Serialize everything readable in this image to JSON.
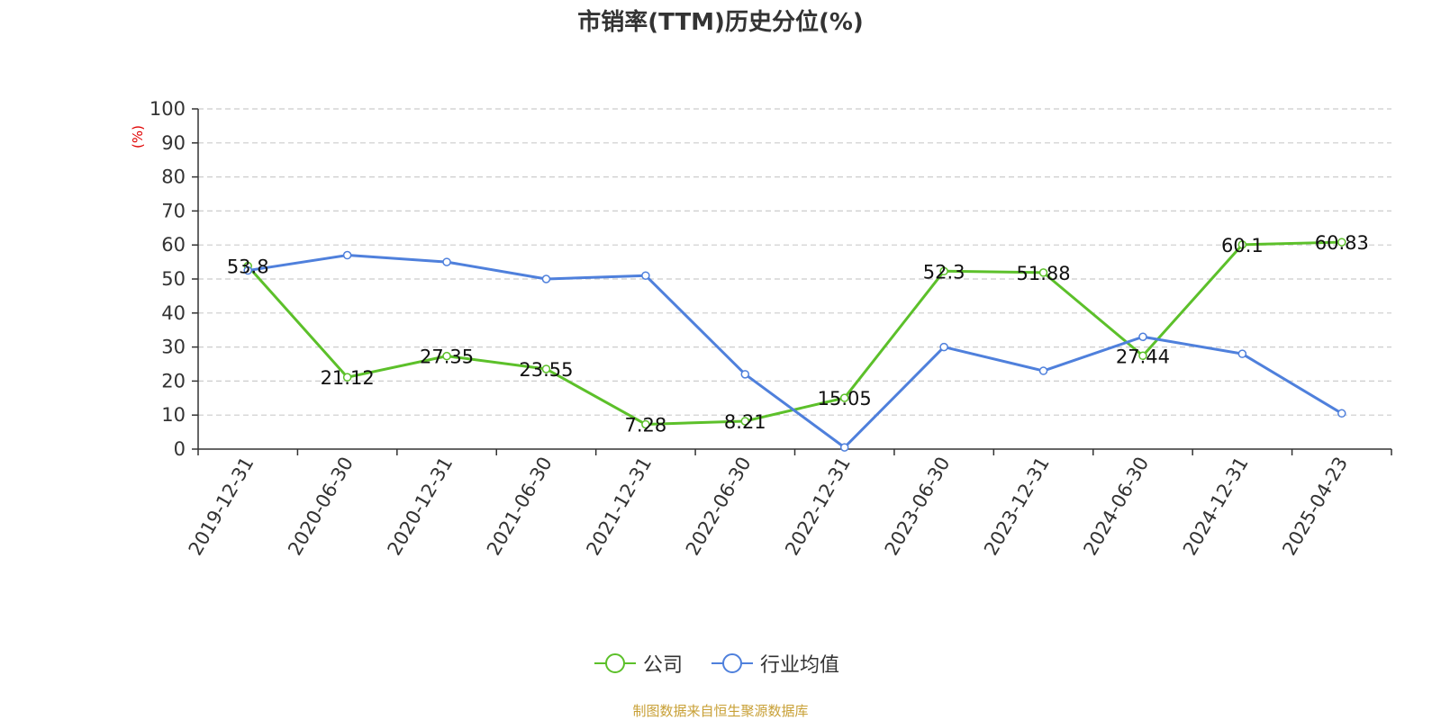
{
  "chart_data": {
    "type": "line",
    "title": "市销率(TTM)历史分位(%)",
    "ylabel": "(%)",
    "xlabel": "",
    "ylim": [
      0,
      100
    ],
    "yticks": [
      "0",
      "10",
      "20",
      "30",
      "40",
      "50",
      "60",
      "70",
      "80",
      "90",
      "100"
    ],
    "categories": [
      "2019-12-31",
      "2020-06-30",
      "2020-12-31",
      "2021-06-30",
      "2021-12-31",
      "2022-06-30",
      "2022-12-31",
      "2023-06-30",
      "2023-12-31",
      "2024-06-30",
      "2024-12-31",
      "2025-04-23"
    ],
    "series": [
      {
        "name": "公司",
        "color": "#5cc02a",
        "values": [
          53.8,
          21.12,
          27.35,
          23.55,
          7.28,
          8.21,
          15.05,
          52.3,
          51.88,
          27.44,
          60.1,
          60.83
        ],
        "labels": [
          "53.8",
          "21.12",
          "27.35",
          "23.55",
          "7.28",
          "8.21",
          "15.05",
          "52.3",
          "51.88",
          "27.44",
          "60.1",
          "60.83"
        ]
      },
      {
        "name": "行业均值",
        "color": "#4f80dc",
        "values": [
          52.5,
          57,
          55,
          50,
          51,
          22,
          0.5,
          30,
          23,
          33,
          28,
          10.5
        ]
      }
    ],
    "grid": true,
    "legend_position": "bottom-center"
  },
  "source": "制图数据来自恒生聚源数据库"
}
